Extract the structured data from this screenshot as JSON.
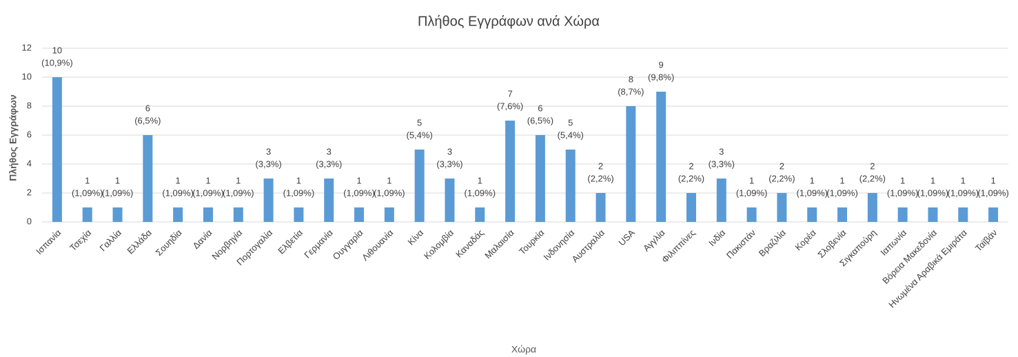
{
  "chart_data": {
    "type": "bar",
    "title": "Πλήθος Εγγράφων ανά Χώρα",
    "x_label": "Χώρα",
    "y_label": "Πλήθος Εγγράφων",
    "categories": [
      "Ισπανία",
      "Τσεχία",
      "Γαλλία",
      "Ελλάδα",
      "Σουηδία",
      "Δανία",
      "Νορβηγία",
      "Πορτογαλία",
      "Ελβετία",
      "Γερμανία",
      "Ουγγαρία",
      "Λιθουανία",
      "Κίνα",
      "Κολομβία",
      "Καναδάς",
      "Μαλαισία",
      "Τουρκία",
      "Ινδονησία",
      "Αυστραλία",
      "USA",
      "Αγγλία",
      "Φιλιππίνες",
      "Ινδία",
      "Πακιστάν",
      "Βραζιλία",
      "Κορέα",
      "Σλοβενία",
      "Σιγκαπούρη",
      "Ιαπωνία",
      "Βόρεια Μακεδονία",
      "Ηνωμένα Αραβικά Εμιράτα",
      "Ταϊβάν"
    ],
    "values": [
      10,
      1,
      1,
      6,
      1,
      1,
      1,
      3,
      1,
      3,
      1,
      1,
      5,
      3,
      1,
      7,
      6,
      5,
      2,
      8,
      9,
      2,
      3,
      1,
      2,
      1,
      1,
      2,
      1,
      1,
      1,
      1
    ],
    "percent_labels": [
      "(10,9%)",
      "(1,09%)",
      "(1,09%)",
      "(6,5%)",
      "(1,09%)",
      "(1,09%)",
      "(1,09%)",
      "(3,3%)",
      "(1,09%)",
      "(3,3%)",
      "(1,09%)",
      "(1,09%)",
      "(5,4%)",
      "(3,3%)",
      "(1,09%)",
      "(7,6%)",
      "(6,5%)",
      "(5,4%)",
      "(2,2%)",
      "(8,7%)",
      "(9,8%)",
      "(2,2%)",
      "(3,3%)",
      "(1,09%)",
      "(2,2%)",
      "(1,09%)",
      "(1,09%)",
      "(2,2%)",
      "(1,09%)",
      "(1,09%)",
      "(1,09%)",
      "(1,09%)"
    ],
    "color": "#5b9bd5",
    "ylim": [
      0,
      12
    ],
    "yticks": [
      0,
      2,
      4,
      6,
      8,
      10,
      12
    ],
    "grid": true
  }
}
